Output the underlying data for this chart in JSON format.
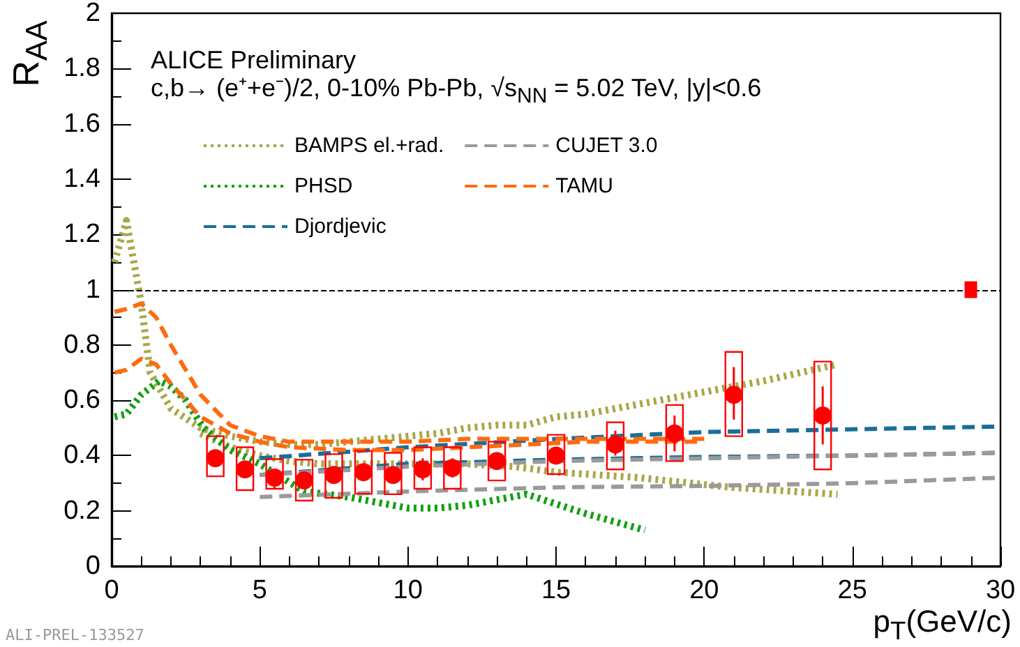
{
  "chart_data": {
    "type": "line",
    "title": "ALICE Preliminary",
    "subtitle": "c,b→ (e⁺+e⁻)/2, 0-10% Pb-Pb, √s$_{NN}$ = 5.02 TeV, |y|<0.6",
    "xlabel": "p$_{T}$(GeV/c)",
    "ylabel": "R$_{AA}$",
    "annotations": [
      "ALI-PREL-133527"
    ],
    "xlim": [
      0,
      30
    ],
    "xticks": [
      0,
      5,
      10,
      15,
      20,
      25,
      30
    ],
    "ylim": [
      0,
      2
    ],
    "yticks": [
      0,
      0.2,
      0.4,
      0.6,
      0.8,
      1,
      1.2,
      1.4,
      1.6,
      1.8,
      2
    ],
    "grid": false,
    "legend": "top left",
    "ref_lines": [
      {
        "axis": "y",
        "value": 1,
        "color": "#000000",
        "line_style": "dashed"
      }
    ],
    "series": [
      {
        "name": "BAMPS el.+rad.",
        "color": "#a8a84a",
        "line_style": "dotted",
        "marker": "none",
        "x": [
          0.1,
          0.5,
          1,
          1.3,
          2,
          3,
          4,
          5,
          6,
          7,
          8,
          9,
          10,
          11,
          12,
          13,
          14,
          15,
          16,
          18,
          20,
          22,
          24.5
        ],
        "values": [
          1.1,
          1.25,
          0.95,
          0.7,
          0.57,
          0.5,
          0.47,
          0.45,
          0.44,
          0.44,
          0.45,
          0.46,
          0.47,
          0.48,
          0.5,
          0.51,
          0.51,
          0.54,
          0.55,
          0.59,
          0.63,
          0.67,
          0.73
        ]
      },
      {
        "color": "#a8a84a",
        "line_style": "dotted",
        "marker": "none",
        "x": [
          3,
          4,
          5,
          6,
          7,
          8,
          10,
          12,
          13.6,
          15,
          17.8,
          20.9,
          24.5
        ],
        "values": [
          0.48,
          0.43,
          0.4,
          0.38,
          0.37,
          0.37,
          0.37,
          0.37,
          0.36,
          0.34,
          0.32,
          0.285,
          0.26
        ]
      },
      {
        "name": "PHSD",
        "color": "#13a013",
        "line_style": "dotted",
        "marker": "none",
        "x": [
          0.1,
          0.5,
          1,
          1.6,
          2,
          2.5,
          3.1,
          4,
          5,
          6.5,
          8,
          9,
          10,
          11,
          12,
          14,
          16,
          18
        ],
        "values": [
          0.54,
          0.55,
          0.62,
          0.67,
          0.65,
          0.6,
          0.5,
          0.42,
          0.37,
          0.27,
          0.25,
          0.23,
          0.21,
          0.21,
          0.22,
          0.26,
          0.19,
          0.13
        ]
      },
      {
        "name": "Djordjevic",
        "color": "#1a6e99",
        "line_style": "dashed",
        "marker": "none",
        "x": [
          5,
          10,
          15,
          20,
          25,
          30
        ],
        "values": [
          0.39,
          0.43,
          0.46,
          0.485,
          0.495,
          0.505
        ]
      },
      {
        "color": "#1a6e99",
        "line_style": "dashed",
        "marker": "none",
        "x": [
          5,
          10,
          15,
          20,
          25,
          30
        ],
        "values": [
          0.33,
          0.37,
          0.385,
          0.395,
          0.4,
          0.41
        ]
      },
      {
        "name": "CUJET 3.0",
        "color": "#9a9a9a",
        "line_style": "dashed",
        "marker": "none",
        "x": [
          5,
          10,
          15,
          20,
          25,
          30
        ],
        "values": [
          0.33,
          0.36,
          0.38,
          0.39,
          0.4,
          0.41
        ]
      },
      {
        "color": "#9a9a9a",
        "line_style": "dashed",
        "marker": "none",
        "x": [
          5,
          10,
          15,
          20,
          25,
          30
        ],
        "values": [
          0.25,
          0.27,
          0.285,
          0.29,
          0.3,
          0.32
        ]
      },
      {
        "name": "TAMU",
        "color": "#ff6a10",
        "line_style": "dashed",
        "marker": "none",
        "x": [
          0.1,
          0.5,
          1,
          1.5,
          2,
          3,
          4,
          5,
          6,
          8,
          10,
          12,
          14,
          16,
          18,
          20
        ],
        "values": [
          0.92,
          0.93,
          0.95,
          0.9,
          0.8,
          0.62,
          0.51,
          0.47,
          0.45,
          0.45,
          0.45,
          0.46,
          0.46,
          0.46,
          0.46,
          0.46
        ]
      },
      {
        "color": "#ff6a10",
        "line_style": "dashed",
        "marker": "none",
        "x": [
          0.1,
          0.5,
          1,
          1.5,
          2,
          3,
          4,
          5,
          6,
          8,
          10,
          12,
          14,
          16,
          18,
          20
        ],
        "values": [
          0.7,
          0.71,
          0.75,
          0.73,
          0.66,
          0.54,
          0.48,
          0.45,
          0.43,
          0.42,
          0.42,
          0.43,
          0.44,
          0.45,
          0.45,
          0.45
        ]
      },
      {
        "type": "scatter",
        "color": "#ff0000",
        "marker": "circle",
        "x": [
          3.5,
          4.5,
          5.5,
          6.5,
          7.5,
          8.5,
          9.5,
          10.5,
          11.5,
          13,
          15,
          17,
          19,
          21,
          24
        ],
        "values": [
          0.39,
          0.35,
          0.32,
          0.31,
          0.33,
          0.34,
          0.33,
          0.35,
          0.355,
          0.38,
          0.4,
          0.44,
          0.48,
          0.62,
          0.545
        ],
        "errors": [
          [
            0.36,
            0.42
          ],
          [
            0.32,
            0.38
          ],
          [
            0.28,
            0.35
          ],
          [
            0.28,
            0.34
          ],
          [
            0.3,
            0.36
          ],
          [
            0.31,
            0.37
          ],
          [
            0.3,
            0.36
          ],
          [
            0.31,
            0.39
          ],
          [
            0.32,
            0.39
          ],
          [
            0.35,
            0.41
          ],
          [
            0.37,
            0.43
          ],
          [
            0.4,
            0.49
          ],
          [
            0.415,
            0.545
          ],
          [
            0.53,
            0.72
          ],
          [
            0.44,
            0.65
          ]
        ]
      },
      {
        "type": "bar",
        "color": "#ff0000",
        "x": [
          3.5,
          4.5,
          5.5,
          6.5,
          7.5,
          8.5,
          9.5,
          10.5,
          11.5,
          13,
          15,
          17,
          19,
          21,
          24
        ],
        "base": [
          0.325,
          0.275,
          0.28,
          0.237,
          0.247,
          0.262,
          0.26,
          0.28,
          0.28,
          0.31,
          0.333,
          0.35,
          0.38,
          0.47,
          0.35
        ],
        "values": [
          0.145,
          0.155,
          0.107,
          0.148,
          0.158,
          0.155,
          0.15,
          0.15,
          0.15,
          0.14,
          0.142,
          0.17,
          0.203,
          0.305,
          0.39
        ]
      },
      {
        "type": "scatter",
        "color": "#ff0000",
        "marker": "square",
        "x": [
          29
        ],
        "values": [
          1
        ]
      }
    ]
  }
}
